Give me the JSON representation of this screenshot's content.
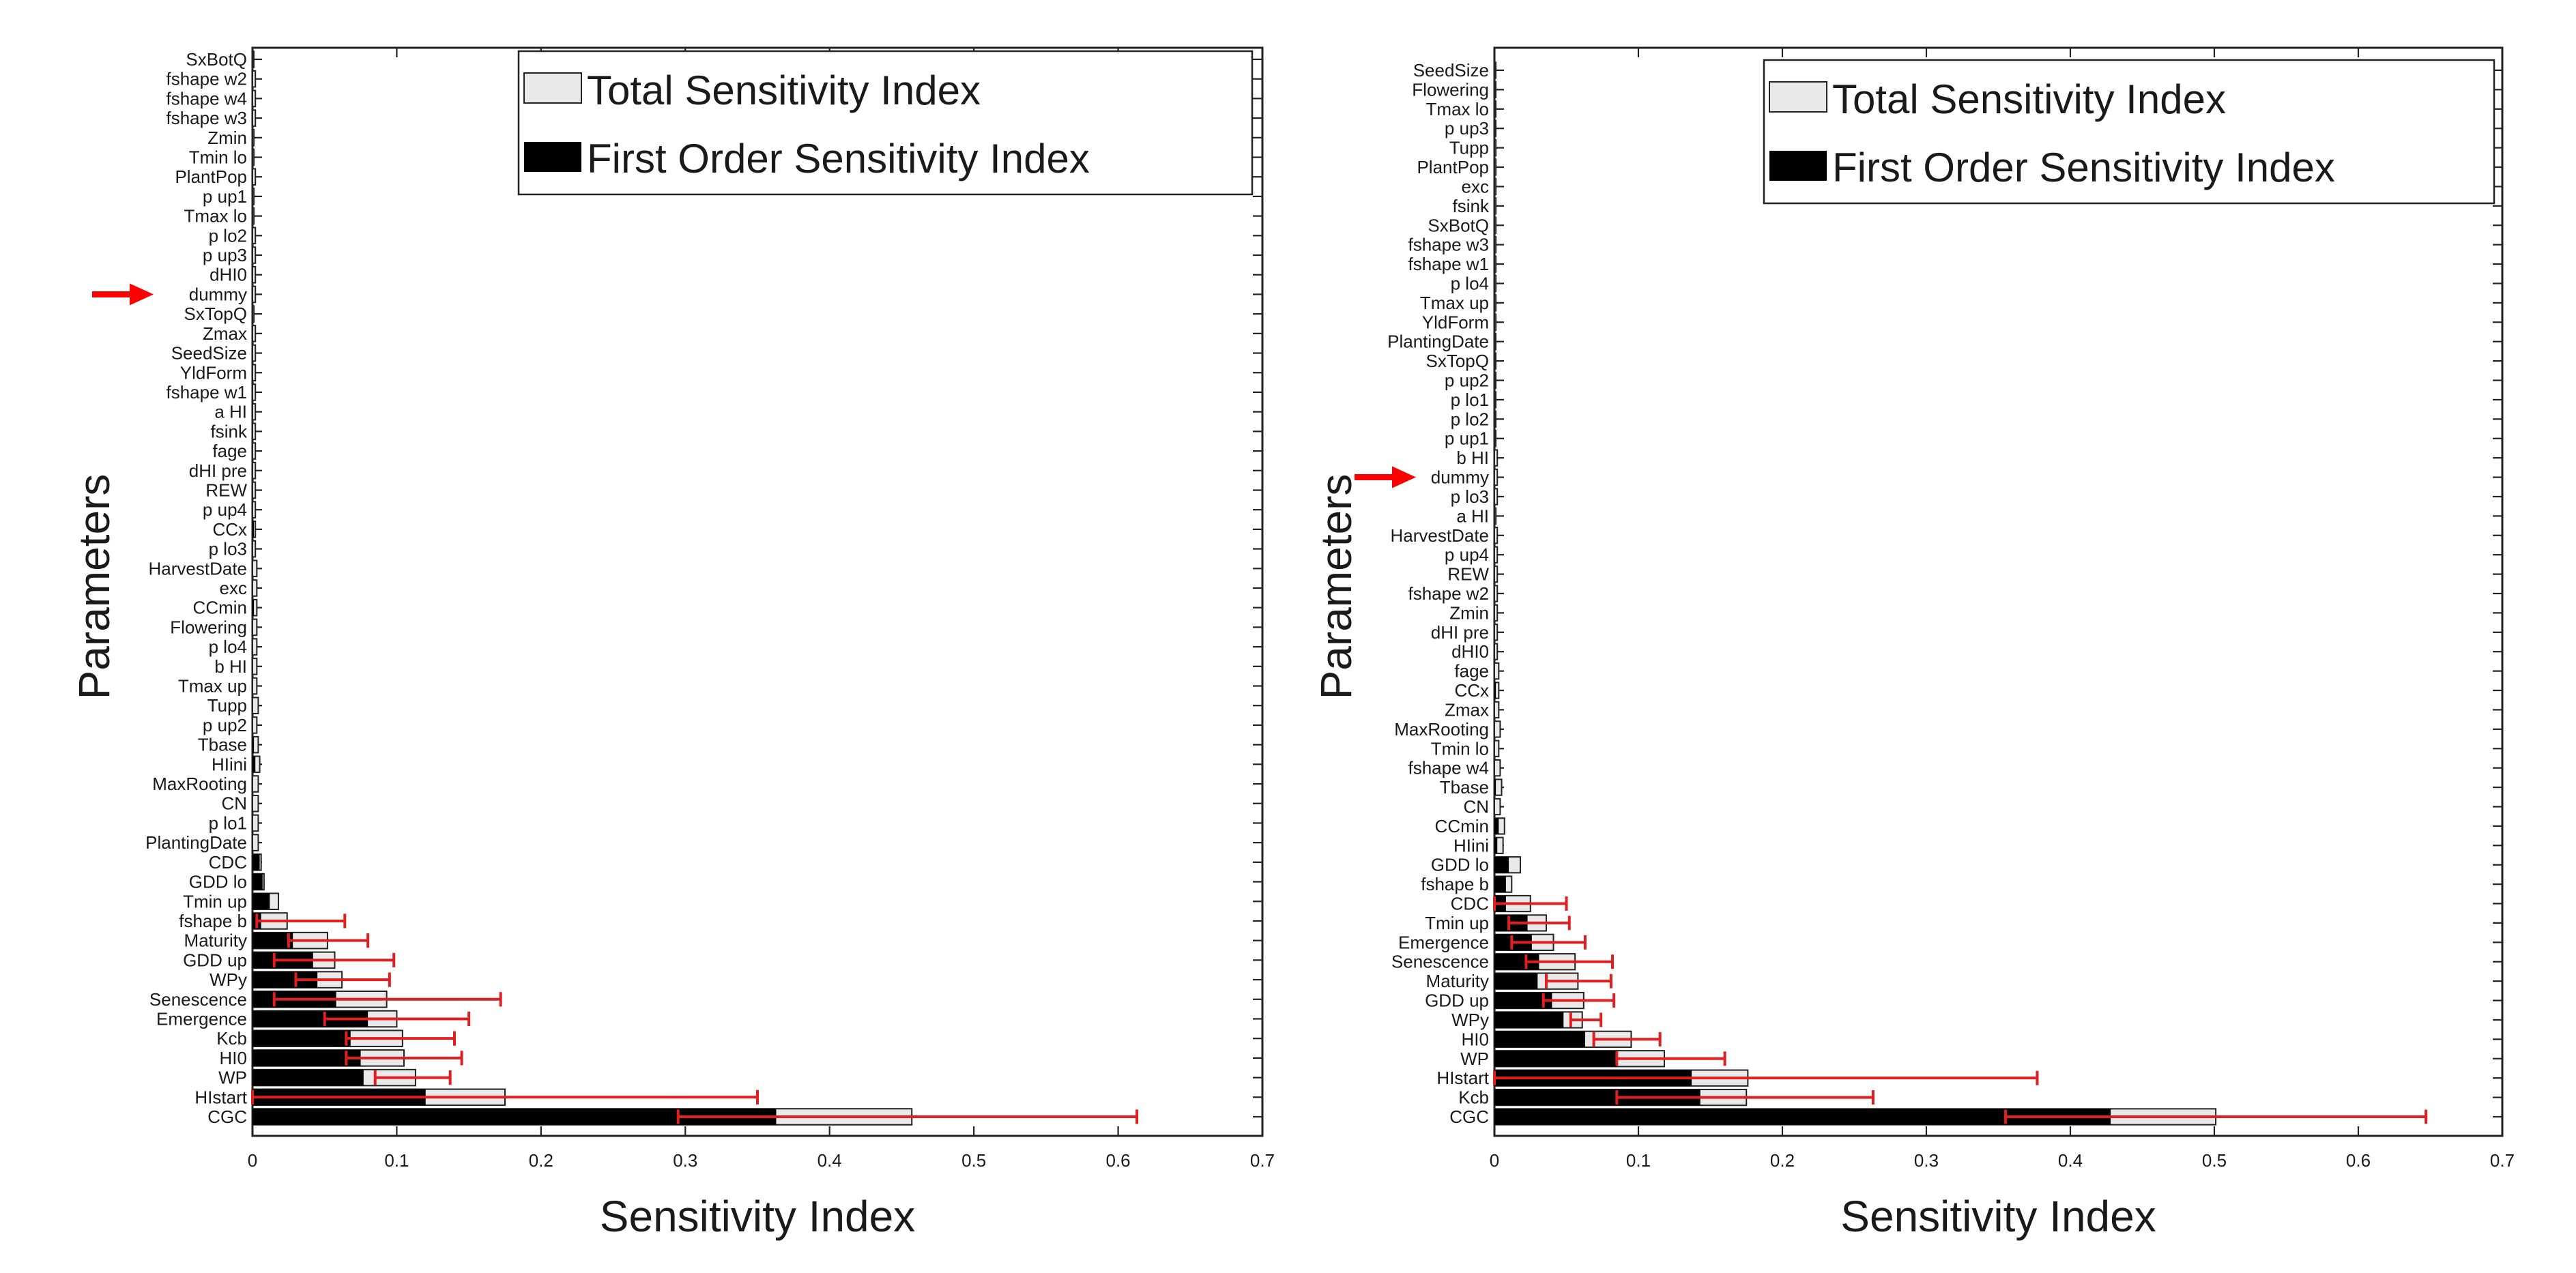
{
  "colors": {
    "total": "#e9e9e9",
    "first": "#000000",
    "error": "#e02020",
    "arrow": "#ff0000"
  },
  "chart_data": [
    {
      "type": "bar",
      "orientation": "horizontal",
      "xlabel": "Sensitivity Index",
      "ylabel": "Parameters",
      "xlim": [
        0,
        0.7
      ],
      "xticks": [
        "0",
        "0.1",
        "0.2",
        "0.3",
        "0.4",
        "0.5",
        "0.6",
        "0.7"
      ],
      "legend": [
        "Total Sensitivity Index",
        "First Order Sensitivity Index"
      ],
      "legend_position": "top-right",
      "highlight": "dummy",
      "categories": [
        "SxBotQ",
        "fshape w2",
        "fshape w4",
        "fshape w3",
        "Zmin",
        "Tmin lo",
        "PlantPop",
        "p up1",
        "Tmax lo",
        "p lo2",
        "p up3",
        "dHI0",
        "dummy",
        "SxTopQ",
        "Zmax",
        "SeedSize",
        "YldForm",
        "fshape w1",
        "a HI",
        "fsink",
        "fage",
        "dHI pre",
        "REW",
        "p up4",
        "CCx",
        "p lo3",
        "HarvestDate",
        "exc",
        "CCmin",
        "Flowering",
        "p lo4",
        "b HI",
        "Tmax up",
        "Tupp",
        "p up2",
        "Tbase",
        "HIini",
        "MaxRooting",
        "CN",
        "p lo1",
        "PlantingDate",
        "CDC",
        "GDD lo",
        "Tmin up",
        "fshape b",
        "Maturity",
        "GDD up",
        "WPy",
        "Senescence",
        "Emergence",
        "Kcb",
        "HI0",
        "WP",
        "HIstart",
        "CGC"
      ],
      "series": [
        {
          "name": "Total Sensitivity Index",
          "values": [
            0.0005,
            0.002,
            0.002,
            0.002,
            0.001,
            0.001,
            0.002,
            0.001,
            0.001,
            0.002,
            0.002,
            0.002,
            0.002,
            0.001,
            0.002,
            0.002,
            0.002,
            0.002,
            0.002,
            0.002,
            0.002,
            0.002,
            0.002,
            0.002,
            0.002,
            0.002,
            0.003,
            0.003,
            0.003,
            0.003,
            0.003,
            0.003,
            0.003,
            0.004,
            0.003,
            0.004,
            0.005,
            0.004,
            0.004,
            0.004,
            0.004,
            0.006,
            0.008,
            0.018,
            0.024,
            0.052,
            0.057,
            0.062,
            0.093,
            0.1,
            0.104,
            0.105,
            0.113,
            0.175,
            0.457
          ]
        },
        {
          "name": "First Order Sensitivity Index",
          "values": [
            0,
            0,
            0,
            0,
            0,
            0,
            0,
            0,
            0,
            0,
            0,
            0,
            0,
            0,
            0,
            0,
            0,
            0,
            0,
            0,
            0,
            0,
            0,
            0,
            0.001,
            0,
            0,
            0,
            0.001,
            0,
            0,
            0,
            0,
            0,
            0,
            0.001,
            0.002,
            0,
            0,
            0,
            0,
            0.005,
            0.007,
            0.012,
            0.006,
            0.028,
            0.042,
            0.045,
            0.058,
            0.08,
            0.068,
            0.075,
            0.077,
            0.12,
            0.363
          ]
        },
        {
          "name": "Error range (low)",
          "values": [
            0,
            0,
            0,
            0,
            0,
            0,
            0,
            0,
            0,
            0,
            0,
            0,
            0,
            0,
            0,
            0,
            0,
            0,
            0,
            0,
            0,
            0,
            0,
            0,
            0,
            0,
            0,
            0,
            0,
            0,
            0,
            0,
            0,
            0,
            0,
            0,
            0,
            0,
            0,
            0,
            0,
            0,
            0,
            0,
            0.003,
            0.025,
            0.015,
            0.03,
            0.015,
            0.05,
            0.065,
            0.065,
            0.085,
            0.0,
            0.295
          ]
        },
        {
          "name": "Error range (high)",
          "values": [
            0,
            0,
            0,
            0,
            0,
            0,
            0,
            0,
            0,
            0,
            0,
            0,
            0,
            0,
            0,
            0,
            0,
            0,
            0,
            0,
            0,
            0,
            0,
            0,
            0,
            0,
            0,
            0,
            0,
            0,
            0,
            0,
            0,
            0,
            0,
            0,
            0,
            0,
            0,
            0,
            0,
            0,
            0,
            0,
            0.064,
            0.08,
            0.098,
            0.095,
            0.172,
            0.15,
            0.14,
            0.145,
            0.137,
            0.35,
            0.613
          ]
        }
      ]
    },
    {
      "type": "bar",
      "orientation": "horizontal",
      "xlabel": "Sensitivity Index",
      "ylabel": "Parameters",
      "xlim": [
        0,
        0.7
      ],
      "xticks": [
        "0",
        "0.1",
        "0.2",
        "0.3",
        "0.4",
        "0.5",
        "0.6",
        "0.7"
      ],
      "legend": [
        "Total Sensitivity Index",
        "First Order Sensitivity Index"
      ],
      "legend_position": "top-right",
      "highlight": "dummy",
      "categories": [
        "SeedSize",
        "Flowering",
        "Tmax lo",
        "p up3",
        "Tupp",
        "PlantPop",
        "exc",
        "fsink",
        "SxBotQ",
        "fshape w3",
        "fshape w1",
        "p lo4",
        "Tmax up",
        "YldForm",
        "PlantingDate",
        "SxTopQ",
        "p up2",
        "p lo1",
        "p lo2",
        "p up1",
        "b HI",
        "dummy",
        "p lo3",
        "a HI",
        "HarvestDate",
        "p up4",
        "REW",
        "fshape w2",
        "Zmin",
        "dHI pre",
        "dHI0",
        "fage",
        "CCx",
        "Zmax",
        "MaxRooting",
        "Tmin lo",
        "fshape w4",
        "Tbase",
        "CN",
        "CCmin",
        "HIini",
        "GDD lo",
        "fshape b",
        "CDC",
        "Tmin up",
        "Emergence",
        "Senescence",
        "Maturity",
        "GDD up",
        "WPy",
        "HI0",
        "WP",
        "HIstart",
        "Kcb",
        "CGC"
      ],
      "series": [
        {
          "name": "Total Sensitivity Index",
          "values": [
            0.0005,
            0.0005,
            0.0005,
            0.0005,
            0.001,
            0.001,
            0.001,
            0.001,
            0.001,
            0.001,
            0.001,
            0.001,
            0.001,
            0.001,
            0.0005,
            0.0005,
            0.0005,
            0.0005,
            0.0005,
            0.0005,
            0.002,
            0.002,
            0.002,
            0.001,
            0.002,
            0.002,
            0.002,
            0.002,
            0.002,
            0.002,
            0.002,
            0.003,
            0.003,
            0.003,
            0.004,
            0.003,
            0.004,
            0.005,
            0.004,
            0.007,
            0.006,
            0.018,
            0.012,
            0.025,
            0.036,
            0.041,
            0.056,
            0.058,
            0.062,
            0.061,
            0.095,
            0.118,
            0.176,
            0.175,
            0.501
          ]
        },
        {
          "name": "First Order Sensitivity Index",
          "values": [
            0,
            0,
            0,
            0,
            0,
            0,
            0,
            0,
            0,
            0,
            0,
            0,
            0,
            0,
            0,
            0,
            0,
            0,
            0,
            0,
            0,
            0,
            0,
            0,
            0,
            0,
            0,
            0,
            0,
            0,
            0,
            0,
            0.001,
            0,
            0,
            0,
            0,
            0.001,
            0,
            0.003,
            0.002,
            0.01,
            0.008,
            0.008,
            0.023,
            0.026,
            0.031,
            0.03,
            0.04,
            0.048,
            0.063,
            0.085,
            0.137,
            0.143,
            0.428
          ]
        },
        {
          "name": "Error range (low)",
          "values": [
            0,
            0,
            0,
            0,
            0,
            0,
            0,
            0,
            0,
            0,
            0,
            0,
            0,
            0,
            0,
            0,
            0,
            0,
            0,
            0,
            0,
            0,
            0,
            0,
            0,
            0,
            0,
            0,
            0,
            0,
            0,
            0,
            0,
            0,
            0,
            0,
            0,
            0,
            0,
            0,
            0,
            0,
            0,
            0.0,
            0.01,
            0.012,
            0.022,
            0.036,
            0.034,
            0.053,
            0.069,
            0.085,
            0.0,
            0.085,
            0.355
          ]
        },
        {
          "name": "Error range (high)",
          "values": [
            0,
            0,
            0,
            0,
            0,
            0,
            0,
            0,
            0,
            0,
            0,
            0,
            0,
            0,
            0,
            0,
            0,
            0,
            0,
            0,
            0,
            0,
            0,
            0,
            0,
            0,
            0,
            0,
            0,
            0,
            0,
            0,
            0,
            0,
            0,
            0,
            0,
            0,
            0,
            0,
            0,
            0,
            0,
            0.05,
            0.052,
            0.063,
            0.082,
            0.081,
            0.083,
            0.074,
            0.115,
            0.16,
            0.377,
            0.263,
            0.647
          ]
        }
      ]
    }
  ]
}
